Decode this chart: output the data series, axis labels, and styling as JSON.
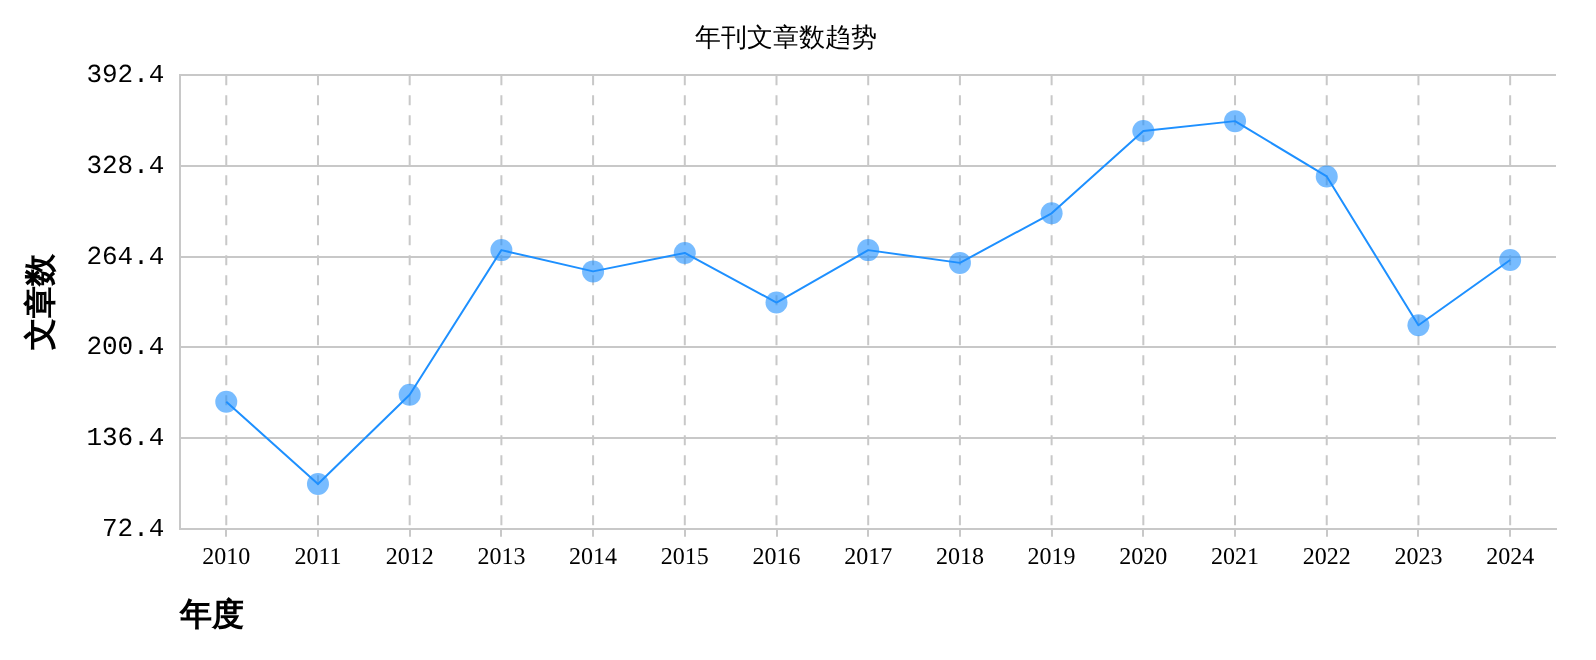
{
  "chart_data": {
    "type": "line",
    "title": "年刊文章数趋势",
    "xlabel": "年度",
    "ylabel": "文章数",
    "categories": [
      "2010",
      "2011",
      "2012",
      "2013",
      "2014",
      "2015",
      "2016",
      "2017",
      "2018",
      "2019",
      "2020",
      "2021",
      "2022",
      "2023",
      "2024"
    ],
    "series": [
      {
        "color": "#1e90ff",
        "values": [
          162,
          104,
          167,
          269,
          254,
          267,
          232,
          269,
          260,
          295,
          353,
          360,
          321,
          216,
          262
        ]
      }
    ],
    "ylim": [
      72.4,
      392.4
    ],
    "yticks": [
      72.4,
      136.4,
      200.4,
      264.4,
      328.4,
      392.4
    ],
    "grid": true,
    "legend": false,
    "marker": "circle",
    "line_style": "solid"
  }
}
